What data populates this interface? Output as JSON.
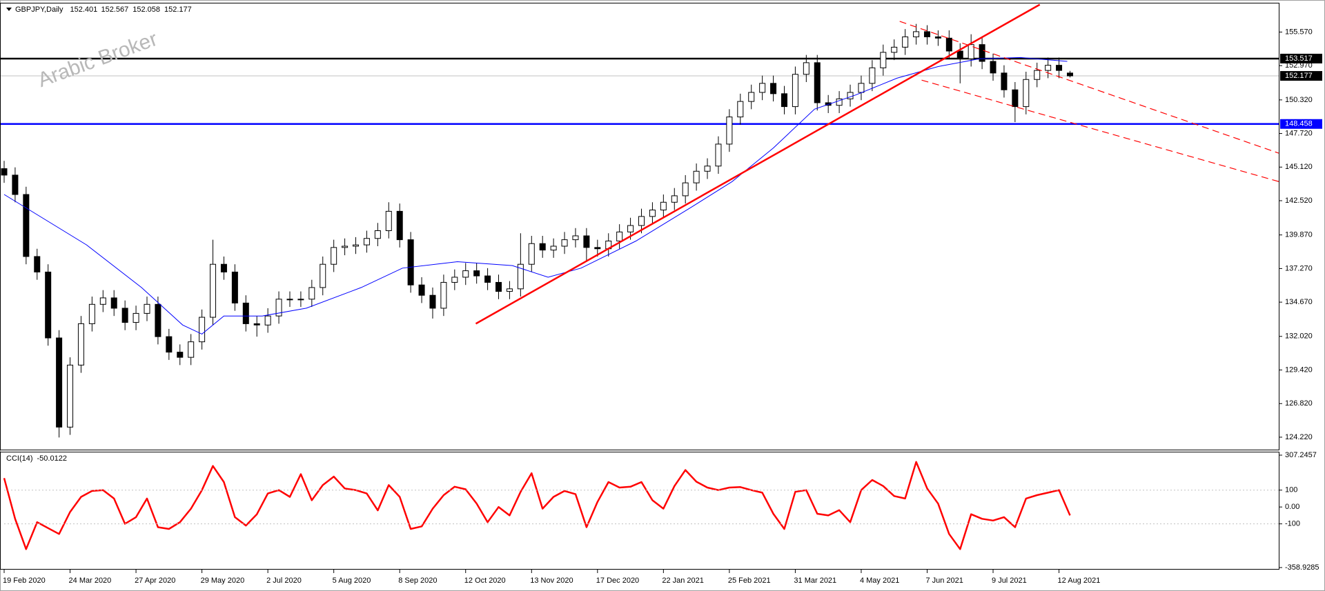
{
  "chart_data": [
    {
      "type": "candlestick",
      "title": "GBPJPY,Daily",
      "watermark": "Arabic Broker",
      "xlim": [
        0,
        464
      ],
      "ylim": [
        123.31,
        157.73
      ],
      "yticks": [
        {
          "value": 155.57,
          "label": "155.570"
        },
        {
          "value": 152.97,
          "label": "152.970"
        },
        {
          "value": 150.32,
          "label": "150.320"
        },
        {
          "value": 147.72,
          "label": "147.720"
        },
        {
          "value": 145.12,
          "label": "145.120"
        },
        {
          "value": 142.52,
          "label": "142.520"
        },
        {
          "value": 139.87,
          "label": "139.870"
        },
        {
          "value": 137.27,
          "label": "137.270"
        },
        {
          "value": 134.67,
          "label": "134.670"
        },
        {
          "value": 132.02,
          "label": "132.020"
        },
        {
          "value": 129.42,
          "label": "129.420"
        },
        {
          "value": 126.82,
          "label": "126.820"
        },
        {
          "value": 124.22,
          "label": "124.220"
        }
      ],
      "up_color": "#ffffff",
      "down_color": "#000000",
      "wick_color": "#000000",
      "x": [
        0,
        4,
        8,
        12,
        16,
        20,
        24,
        28,
        32,
        36,
        40,
        44,
        48,
        52,
        56,
        60,
        64,
        68,
        72,
        76,
        80,
        84,
        88,
        92,
        96,
        100,
        104,
        108,
        112,
        116,
        120,
        124,
        128,
        132,
        136,
        140,
        144,
        148,
        152,
        156,
        160,
        164,
        168,
        172,
        176,
        180,
        184,
        188,
        192,
        196,
        200,
        204,
        208,
        212,
        216,
        220,
        224,
        228,
        232,
        236,
        240,
        244,
        248,
        252,
        256,
        260,
        264,
        268,
        272,
        276,
        280,
        284,
        288,
        292,
        296,
        300,
        304,
        308,
        312,
        316,
        320,
        324,
        328,
        332,
        336,
        340,
        344,
        348,
        352,
        356,
        360,
        364,
        368,
        372,
        376,
        380,
        384,
        388
      ],
      "open": [
        145.0,
        144.5,
        143.0,
        138.2,
        137.0,
        131.9,
        125.0,
        129.8,
        133.0,
        134.5,
        135.0,
        134.2,
        133.1,
        133.8,
        134.5,
        132.0,
        130.8,
        130.4,
        131.6,
        133.5,
        137.6,
        137.0,
        134.6,
        133.0,
        132.9,
        133.6,
        134.9,
        134.9,
        134.9,
        135.8,
        137.6,
        138.9,
        139.0,
        139.1,
        139.6,
        140.2,
        141.7,
        139.5,
        136.0,
        135.2,
        134.2,
        136.2,
        136.6,
        137.1,
        136.7,
        136.2,
        135.5,
        135.7,
        137.6,
        139.2,
        138.7,
        139.0,
        139.5,
        139.8,
        138.9,
        138.8,
        139.4,
        140.1,
        140.6,
        141.3,
        141.8,
        142.4,
        142.9,
        143.9,
        144.8,
        145.2,
        146.9,
        149.0,
        150.2,
        150.9,
        151.6,
        150.8,
        149.8,
        152.3,
        153.2,
        150.1,
        149.9,
        150.4,
        150.9,
        151.6,
        152.8,
        154.0,
        154.4,
        155.2,
        155.6,
        155.2,
        155.1,
        154.1,
        153.5,
        154.6,
        153.3,
        152.4,
        151.1,
        149.8,
        151.9,
        152.6,
        153.0,
        152.401
      ],
      "high": [
        145.6,
        145.1,
        143.6,
        138.8,
        137.6,
        132.5,
        130.4,
        133.6,
        135.1,
        135.6,
        135.6,
        134.8,
        134.4,
        135.1,
        135.1,
        132.6,
        131.4,
        132.2,
        134.1,
        139.5,
        138.2,
        137.6,
        135.2,
        133.6,
        134.2,
        135.5,
        135.5,
        135.5,
        136.4,
        138.2,
        139.5,
        139.6,
        139.7,
        140.2,
        140.8,
        142.4,
        142.3,
        140.1,
        136.6,
        135.8,
        136.8,
        137.2,
        137.7,
        137.7,
        137.3,
        136.8,
        136.3,
        140.0,
        139.8,
        139.8,
        139.6,
        140.1,
        140.4,
        140.4,
        139.5,
        140.0,
        140.7,
        141.2,
        141.9,
        142.4,
        143.0,
        143.5,
        144.5,
        145.4,
        145.8,
        147.5,
        149.6,
        150.8,
        151.5,
        152.2,
        152.2,
        151.4,
        152.9,
        153.8,
        153.8,
        150.7,
        151.0,
        151.5,
        152.2,
        153.4,
        154.6,
        155.0,
        155.8,
        156.2,
        156.1,
        155.7,
        155.7,
        154.7,
        155.4,
        155.2,
        153.9,
        153.0,
        151.7,
        152.5,
        153.2,
        153.6,
        153.6,
        152.567
      ],
      "low": [
        143.9,
        142.4,
        137.6,
        136.4,
        131.3,
        124.2,
        124.4,
        129.2,
        132.4,
        133.9,
        133.6,
        132.5,
        132.5,
        133.2,
        131.4,
        130.2,
        129.8,
        129.8,
        131.0,
        132.9,
        136.4,
        134.0,
        132.4,
        132.0,
        132.3,
        133.0,
        134.3,
        134.3,
        134.3,
        135.2,
        137.0,
        138.3,
        138.4,
        138.5,
        139.0,
        139.6,
        138.9,
        135.4,
        134.6,
        133.4,
        133.6,
        135.6,
        136.0,
        136.1,
        135.6,
        134.9,
        134.9,
        135.1,
        137.0,
        138.1,
        138.1,
        138.4,
        138.9,
        137.8,
        138.2,
        138.2,
        138.8,
        139.5,
        140.0,
        140.7,
        141.2,
        141.8,
        142.3,
        143.3,
        144.2,
        144.6,
        146.3,
        148.4,
        149.6,
        150.3,
        150.2,
        149.2,
        149.2,
        151.7,
        149.5,
        149.3,
        149.3,
        149.8,
        150.3,
        151.0,
        152.2,
        153.4,
        153.8,
        154.6,
        154.6,
        154.5,
        153.5,
        151.6,
        152.9,
        152.7,
        151.8,
        150.5,
        148.6,
        149.2,
        151.3,
        152.0,
        152.0,
        152.058
      ],
      "close": [
        144.5,
        143.0,
        138.2,
        137.0,
        131.9,
        125.0,
        129.8,
        133.0,
        134.5,
        135.0,
        134.2,
        133.1,
        133.8,
        134.5,
        132.0,
        130.8,
        130.4,
        131.6,
        133.5,
        137.6,
        137.0,
        134.6,
        133.0,
        132.9,
        133.6,
        134.9,
        134.9,
        134.9,
        135.8,
        137.6,
        138.9,
        139.0,
        139.1,
        139.6,
        140.2,
        141.7,
        139.5,
        136.0,
        135.2,
        134.2,
        136.2,
        136.6,
        137.1,
        136.7,
        136.2,
        135.5,
        135.7,
        137.6,
        139.2,
        138.7,
        139.0,
        139.5,
        139.8,
        138.9,
        138.8,
        139.4,
        140.1,
        140.6,
        141.3,
        141.8,
        142.4,
        142.9,
        143.9,
        144.8,
        145.2,
        146.9,
        149.0,
        150.2,
        150.9,
        151.6,
        150.8,
        149.8,
        152.3,
        153.2,
        150.1,
        149.9,
        150.4,
        150.9,
        151.6,
        152.8,
        154.0,
        154.4,
        155.2,
        155.6,
        155.2,
        155.1,
        154.1,
        153.5,
        154.6,
        153.3,
        152.4,
        151.1,
        149.8,
        151.9,
        152.6,
        153.0,
        152.6,
        152.177
      ],
      "ma": {
        "color": "#0000ff",
        "x": [
          0,
          30,
          50,
          65,
          72,
          80,
          94,
          110,
          130,
          145,
          165,
          185,
          198,
          210,
          230,
          250,
          265,
          280,
          295,
          310,
          325,
          340,
          355,
          370,
          387
        ],
        "values": [
          143.0,
          139.1,
          135.8,
          132.9,
          132.2,
          133.6,
          133.6,
          134.2,
          135.8,
          137.3,
          137.8,
          137.5,
          136.6,
          137.3,
          139.4,
          142.0,
          144.0,
          146.6,
          149.6,
          150.7,
          152.0,
          152.9,
          153.5,
          153.6,
          153.3
        ]
      },
      "hlines": [
        {
          "value": 152.177,
          "color": "#c0c0c0",
          "label_color": "#000000"
        },
        {
          "value": 153.517,
          "color": "#000000",
          "label_color": "#000000"
        },
        {
          "value": 148.458,
          "color": "#0000ff",
          "label_color": "#0000ff"
        }
      ],
      "trendlines": [
        {
          "x": [
            171.7,
            377
          ],
          "y": [
            133.0,
            157.7
          ],
          "color": "#ff0000",
          "style": "solid"
        },
        {
          "x": [
            326,
            464
          ],
          "y": [
            156.4,
            146.2
          ],
          "color": "#ff0000",
          "style": "dashed"
        },
        {
          "x": [
            334,
            464
          ],
          "y": [
            151.85,
            144.0
          ],
          "color": "#ff0000",
          "style": "dashed"
        }
      ]
    },
    {
      "type": "line",
      "title": "CCI(14)",
      "color": "#ff0000",
      "xlim": [
        0,
        464
      ],
      "ylim": [
        -358.9285,
        307.2457
      ],
      "yticks": [
        307.2457,
        100,
        {
          "value": 0,
          "label": "0.00"
        },
        -100,
        -358.9285
      ],
      "levels": [
        100,
        -100
      ],
      "xticks": [
        {
          "value": 0,
          "label": "19 Feb 2020"
        },
        {
          "value": 24,
          "label": "24 Mar 2020"
        },
        {
          "value": 48,
          "label": "27 Apr 2020"
        },
        {
          "value": 72,
          "label": "29 May 2020"
        },
        {
          "value": 96,
          "label": "2 Jul 2020"
        },
        {
          "value": 120,
          "label": "5 Aug 2020"
        },
        {
          "value": 144,
          "label": "8 Sep 2020"
        },
        {
          "value": 168,
          "label": "12 Oct 2020"
        },
        {
          "value": 192,
          "label": "13 Nov 2020"
        },
        {
          "value": 216,
          "label": "17 Dec 2020"
        },
        {
          "value": 240,
          "label": "22 Jan 2021"
        },
        {
          "value": 264,
          "label": "25 Feb 2021"
        },
        {
          "value": 288,
          "label": "31 Mar 2021"
        },
        {
          "value": 312,
          "label": "4 May 2021"
        },
        {
          "value": 336,
          "label": "7 Jun 2021"
        },
        {
          "value": 360,
          "label": "9 Jul 2021"
        },
        {
          "value": 384,
          "label": "12 Aug 2021"
        }
      ],
      "x": [
        0,
        4,
        8,
        12,
        16,
        20,
        24,
        28,
        32,
        36,
        40,
        44,
        48,
        52,
        56,
        60,
        64,
        68,
        72,
        76,
        80,
        84,
        88,
        92,
        96,
        100,
        104,
        108,
        112,
        116,
        120,
        124,
        128,
        132,
        136,
        140,
        144,
        148,
        152,
        156,
        160,
        164,
        168,
        172,
        176,
        180,
        184,
        188,
        192,
        196,
        200,
        204,
        208,
        212,
        216,
        220,
        224,
        228,
        232,
        236,
        240,
        244,
        248,
        252,
        256,
        260,
        264,
        268,
        272,
        276,
        280,
        284,
        288,
        292,
        296,
        300,
        304,
        308,
        312,
        316,
        320,
        324,
        328,
        332,
        336,
        340,
        344,
        348,
        352,
        356,
        360,
        364,
        368,
        372,
        376,
        380,
        384,
        388
      ],
      "values": [
        171,
        -70,
        -250,
        -90,
        -125,
        -160,
        -30,
        60,
        95,
        100,
        50,
        -100,
        -60,
        50,
        -120,
        -130,
        -90,
        -10,
        100,
        243,
        148,
        -60,
        -110,
        -43,
        80,
        100,
        60,
        195,
        40,
        130,
        180,
        110,
        100,
        80,
        -20,
        130,
        60,
        -130,
        -115,
        -10,
        70,
        120,
        105,
        20,
        -90,
        0,
        -50,
        90,
        200,
        -10,
        60,
        95,
        76,
        -120,
        30,
        148,
        115,
        120,
        148,
        40,
        -10,
        124,
        219,
        150,
        115,
        100,
        115,
        118,
        100,
        85,
        -40,
        -130,
        90,
        100,
        -40,
        -50,
        -19,
        -90,
        100,
        160,
        124,
        65,
        50,
        267,
        110,
        20,
        -160,
        -250,
        -43,
        -70,
        -80,
        -60,
        -120,
        50,
        70,
        85,
        100,
        -50.0122
      ]
    }
  ]
}
